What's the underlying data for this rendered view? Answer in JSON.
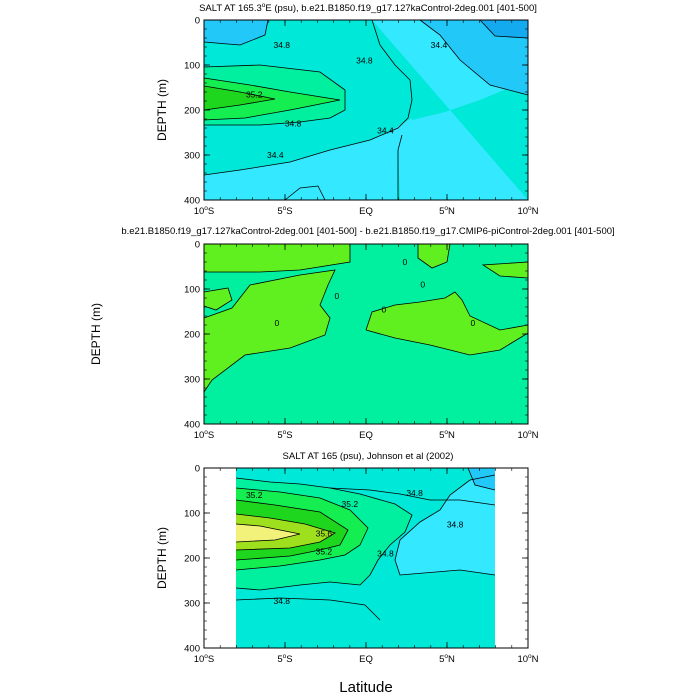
{
  "colors": {
    "c343": "#14aaf0",
    "c344": "#22c8f8",
    "c346": "#33e8ff",
    "c348": "#00e8d8",
    "c350": "#00f0a0",
    "c352": "#14ee50",
    "c354": "#1ed61e",
    "c356": "#9ee01e",
    "c358": "#f2f27a",
    "diffNeg": "#00f0a0",
    "diffPos": "#60f020"
  },
  "xlabel": "Latitude",
  "chart_data": [
    {
      "type": "contour",
      "title": "SALT AT 165.3°E (psu), b.e21.B1850.f19_g17.127kaControl-2deg.001 [401-500]",
      "title_main": "SALT AT 165.3",
      "title_deg": "o",
      "title_rest": "E (psu), b.e21.B1850.f19_g17.127kaControl-2deg.001 [401-500]",
      "xlabel": "",
      "ylabel": "DEPTH (m)",
      "xlim": [
        -10,
        10
      ],
      "ylim": [
        400,
        0
      ],
      "xticks": [
        {
          "v": -10,
          "num": "10",
          "hemi": "S"
        },
        {
          "v": -5,
          "num": "5",
          "hemi": "S"
        },
        {
          "v": 0,
          "num": "EQ",
          "hemi": ""
        },
        {
          "v": 5,
          "num": "5",
          "hemi": "N"
        },
        {
          "v": 10,
          "num": "10",
          "hemi": "N"
        }
      ],
      "yticks": [
        0,
        100,
        200,
        300,
        400
      ],
      "levels": [
        34.4,
        34.8,
        35.2
      ],
      "contour_labels": [
        {
          "text": "34.8",
          "lat": -5.2,
          "depth": 55
        },
        {
          "text": "35.2",
          "lat": -6.9,
          "depth": 165
        },
        {
          "text": "34.8",
          "lat": -0.1,
          "depth": 90
        },
        {
          "text": "34.4",
          "lat": 4.5,
          "depth": 55
        },
        {
          "text": "34.8",
          "lat": -4.5,
          "depth": 230
        },
        {
          "text": "34.4",
          "lat": 1.2,
          "depth": 245
        },
        {
          "text": "34.4",
          "lat": -5.6,
          "depth": 300
        }
      ]
    },
    {
      "type": "contour",
      "title": "b.e21.B1850.f19_g17.127kaControl-2deg.001 [401-500] - b.e21.B1850.f19_g17.CMIP6-piControl-2deg.001 [401-500]",
      "xlabel": "",
      "ylabel": "DEPTH (m)",
      "xlim": [
        -10,
        10
      ],
      "ylim": [
        400,
        0
      ],
      "xticks": [
        {
          "v": -10,
          "num": "10",
          "hemi": "S"
        },
        {
          "v": -5,
          "num": "5",
          "hemi": "S"
        },
        {
          "v": 0,
          "num": "EQ",
          "hemi": ""
        },
        {
          "v": 5,
          "num": "5",
          "hemi": "N"
        },
        {
          "v": 10,
          "num": "10",
          "hemi": "N"
        }
      ],
      "yticks": [
        0,
        100,
        200,
        300,
        400
      ],
      "levels": [
        0
      ],
      "contour_labels": [
        {
          "text": "0",
          "lat": 2.4,
          "depth": 40
        },
        {
          "text": "0",
          "lat": 3.5,
          "depth": 90
        },
        {
          "text": "0",
          "lat": -1.8,
          "depth": 115
        },
        {
          "text": "0",
          "lat": 1.1,
          "depth": 145
        },
        {
          "text": "0",
          "lat": -5.5,
          "depth": 175
        },
        {
          "text": "0",
          "lat": 6.6,
          "depth": 175
        }
      ]
    },
    {
      "type": "contour",
      "title": "SALT AT 165 (psu), Johnson et al (2002)",
      "xlabel": "Latitude",
      "ylabel": "DEPTH (m)",
      "xlim": [
        -10,
        10
      ],
      "ylim": [
        400,
        0
      ],
      "data_lat_range": [
        -8,
        8
      ],
      "xticks": [
        {
          "v": -10,
          "num": "10",
          "hemi": "S"
        },
        {
          "v": -5,
          "num": "5",
          "hemi": "S"
        },
        {
          "v": 0,
          "num": "EQ",
          "hemi": ""
        },
        {
          "v": 5,
          "num": "5",
          "hemi": "N"
        },
        {
          "v": 10,
          "num": "10",
          "hemi": "N"
        }
      ],
      "yticks": [
        0,
        100,
        200,
        300,
        400
      ],
      "levels": [
        34.4,
        34.6,
        34.8,
        35.0,
        35.2,
        35.4,
        35.6,
        35.8
      ],
      "contour_labels": [
        {
          "text": "35.2",
          "lat": -6.9,
          "depth": 60
        },
        {
          "text": "35.2",
          "lat": -1.0,
          "depth": 80
        },
        {
          "text": "34.8",
          "lat": 3.0,
          "depth": 55
        },
        {
          "text": "34.8",
          "lat": 5.5,
          "depth": 125
        },
        {
          "text": "35.6",
          "lat": -2.6,
          "depth": 145
        },
        {
          "text": "35.2",
          "lat": -2.6,
          "depth": 185
        },
        {
          "text": "34.8",
          "lat": 1.2,
          "depth": 190
        },
        {
          "text": "34.8",
          "lat": -5.2,
          "depth": 295
        }
      ]
    }
  ]
}
